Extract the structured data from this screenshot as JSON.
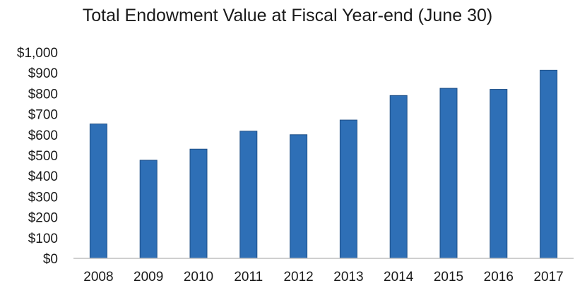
{
  "chart_data": {
    "type": "bar",
    "title": "Total Endowment Value at Fiscal Year-end (June 30)",
    "xlabel": "",
    "ylabel": "",
    "categories": [
      "2008",
      "2009",
      "2010",
      "2011",
      "2012",
      "2013",
      "2014",
      "2015",
      "2016",
      "2017"
    ],
    "values": [
      652,
      476,
      530,
      617,
      600,
      671,
      790,
      825,
      820,
      913
    ],
    "ylim": [
      0,
      1000
    ],
    "yticks": [
      0,
      100,
      200,
      300,
      400,
      500,
      600,
      700,
      800,
      900,
      1000
    ],
    "ytick_labels": [
      "$0",
      "$100",
      "$200",
      "$300",
      "$400",
      "$500",
      "$600",
      "$700",
      "$800",
      "$900",
      "$1,000"
    ],
    "grid": false,
    "legend": "none",
    "bar_color": "#2e6fb6",
    "bar_edge_color": "#1f4f86"
  }
}
